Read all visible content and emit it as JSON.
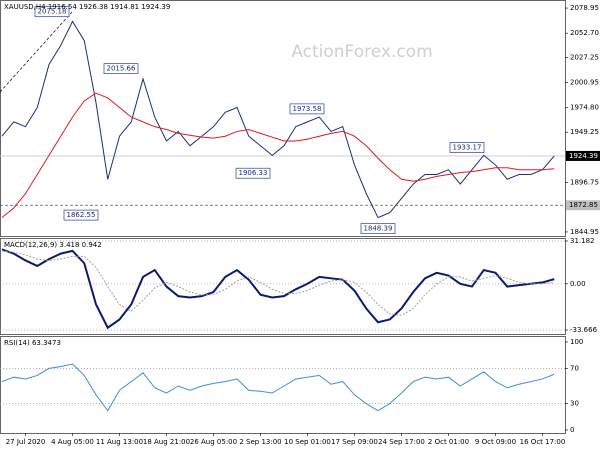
{
  "chart_data": [
    {
      "type": "line",
      "title": "XAUUSD,H4 1916.54 1926.38 1914.81 1924.39",
      "watermark": "ActionForex.com",
      "ylim": [
        1840.7,
        2087.4
      ],
      "yticks": [
        2078.95,
        {
          "value": 2052.7,
          "label": "2052.70"
        },
        2027.25,
        2000.95,
        {
          "value": 1974.8,
          "label": "1974.80"
        },
        1949.25,
        1896.75,
        1844.95
      ],
      "series": [
        {
          "color": "#1a2f80",
          "values": [
            1945,
            1960,
            1955,
            1975,
            2020,
            2040,
            2065,
            2045,
            1980,
            1900,
            1945,
            1960,
            2005,
            1965,
            1940,
            1950,
            1935,
            1945,
            1955,
            1970,
            1975,
            1945,
            1935,
            1925,
            1935,
            1955,
            1960,
            1965,
            1950,
            1955,
            1915,
            1885,
            1860,
            1865,
            1880,
            1895,
            1905,
            1905,
            1910,
            1895,
            1910,
            1925,
            1915,
            1900,
            1905,
            1905,
            1910,
            1924.39
          ]
        },
        {
          "color": "#e31a1c",
          "values": [
            1860,
            1870,
            1885,
            1905,
            1925,
            1945,
            1965,
            1982,
            1990,
            1985,
            1975,
            1965,
            1960,
            1955,
            1952,
            1948,
            1946,
            1944,
            1943,
            1945,
            1950,
            1952,
            1948,
            1944,
            1940,
            1940,
            1942,
            1945,
            1948,
            1950,
            1945,
            1935,
            1922,
            1910,
            1900,
            1898,
            1900,
            1903,
            1905,
            1907,
            1908,
            1910,
            1912,
            1912,
            1910,
            1910,
            1910,
            1911
          ]
        }
      ],
      "price_labels": [
        2075.18,
        2015.66,
        1973.58,
        1933.17,
        1906.33,
        1862.55,
        1848.39
      ],
      "levels": [
        {
          "value": 1924.39,
          "color": "#000000",
          "style": "solid"
        },
        {
          "value": 1872.85,
          "color": "#c0c0c0",
          "style": "dashed"
        }
      ]
    },
    {
      "type": "line",
      "title": "MACD(12,26,9) 3.418 0.942",
      "ylim": [
        -36.58,
        33.37
      ],
      "yticks": [
        31.182,
        {
          "value": 0,
          "label": "0.00"
        },
        -33.666
      ],
      "grid": true,
      "series": [
        {
          "color": "#0a1a6e",
          "style": "solid",
          "values": [
            25,
            22,
            17,
            13,
            18,
            22,
            24,
            15,
            -15,
            -32,
            -26,
            -15,
            5,
            10,
            -2,
            -9,
            -10,
            -9,
            -6,
            5,
            10,
            3,
            -8,
            -10,
            -9,
            -4,
            0,
            5,
            4,
            3,
            -5,
            -18,
            -28,
            -26,
            -18,
            -6,
            4,
            8,
            6,
            0,
            -2,
            10,
            8,
            -2,
            -1,
            0,
            1,
            3.418
          ]
        },
        {
          "color": "#a0a0a0",
          "style": "dashed",
          "values": [
            24,
            23,
            21,
            18,
            17,
            18,
            20,
            20,
            12,
            -2,
            -15,
            -20,
            -12,
            -3,
            1,
            -2,
            -6,
            -8,
            -8,
            -4,
            2,
            5,
            1,
            -4,
            -7,
            -7,
            -5,
            -1,
            2,
            3,
            1,
            -6,
            -15,
            -22,
            -23,
            -18,
            -8,
            0,
            5,
            5,
            2,
            4,
            6,
            4,
            1,
            0,
            0,
            0.942
          ]
        }
      ]
    },
    {
      "type": "line",
      "title": "RSI(14) 63.3473",
      "ylim": [
        -3.4,
        106.8
      ],
      "yticks": [
        100,
        70,
        30,
        0
      ],
      "grid": true,
      "categories": [
        null,
        null,
        "27 Jul 2020",
        null,
        null,
        null,
        "4 Aug 05:00",
        null,
        null,
        null,
        "11 Aug 13:00",
        null,
        null,
        null,
        "18 Aug 21:00",
        null,
        null,
        null,
        "26 Aug 05:00",
        null,
        null,
        null,
        "2 Sep 13:00",
        null,
        null,
        null,
        "10 Sep 01:00",
        null,
        null,
        null,
        "17 Sep 09:00",
        null,
        null,
        null,
        "24 Sep 17:00",
        null,
        null,
        null,
        "2 Oct 01:00",
        null,
        null,
        null,
        "9 Oct 09:00",
        null,
        null,
        null,
        "16 Oct 17:00",
        null
      ],
      "series": [
        {
          "color": "#3a8ee6",
          "style": "solid",
          "values": [
            55,
            60,
            58,
            62,
            70,
            72,
            75,
            62,
            40,
            22,
            45,
            55,
            65,
            48,
            42,
            50,
            45,
            50,
            53,
            55,
            58,
            45,
            44,
            42,
            50,
            58,
            60,
            62,
            52,
            55,
            40,
            30,
            22,
            30,
            42,
            55,
            60,
            58,
            60,
            50,
            58,
            66,
            55,
            48,
            52,
            55,
            58,
            63.3473
          ]
        }
      ]
    }
  ]
}
